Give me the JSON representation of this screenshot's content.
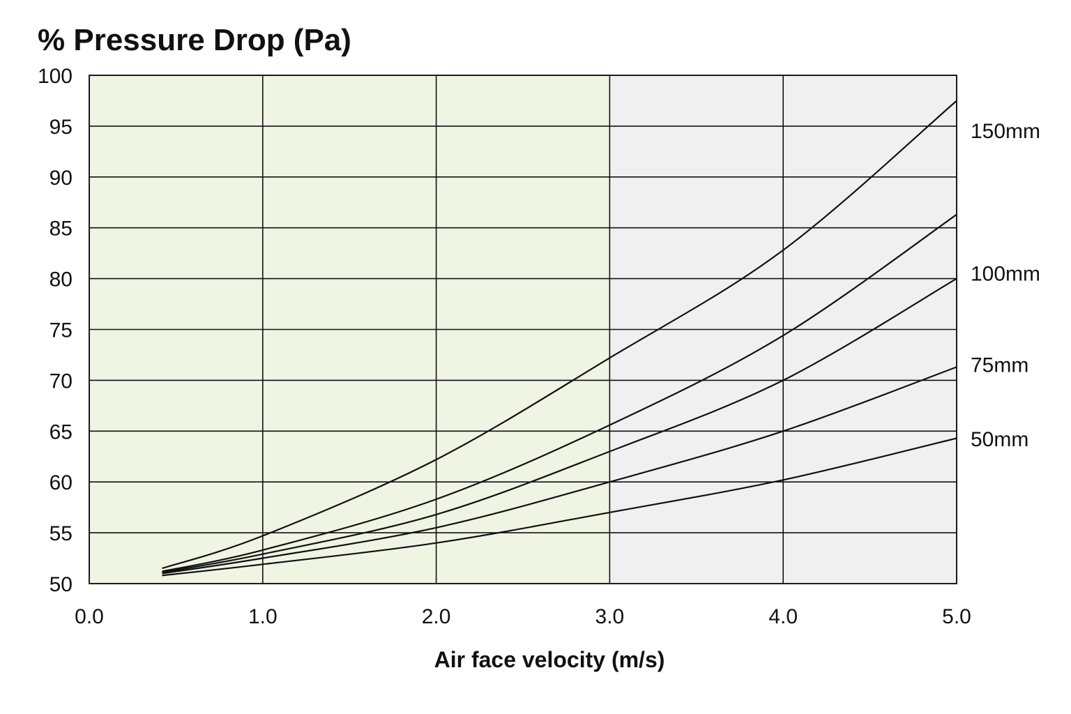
{
  "chart_data": {
    "type": "line",
    "title": "% Pressure Drop (Pa)",
    "xlabel": "Air face velocity (m/s)",
    "ylabel": "",
    "xlim": [
      0,
      5
    ],
    "ylim": [
      50,
      100
    ],
    "x_ticks": [
      "0.0",
      "1.0",
      "2.0",
      "3.0",
      "4.0",
      "5.0"
    ],
    "x_tick_values": [
      0,
      1,
      2,
      3,
      4,
      5
    ],
    "y_ticks": [
      "50",
      "55",
      "60",
      "65",
      "70",
      "75",
      "80",
      "85",
      "90",
      "95",
      "100"
    ],
    "y_tick_values": [
      50,
      55,
      60,
      65,
      70,
      75,
      80,
      85,
      90,
      95,
      100
    ],
    "grid": true,
    "shaded_regions": [
      {
        "x_range": [
          0,
          3
        ],
        "color": "#eff4e3"
      },
      {
        "x_range": [
          3,
          5
        ],
        "color": "#f0f0f0"
      }
    ],
    "series": [
      {
        "name": "150mm",
        "x": [
          0.42,
          1.0,
          2.0,
          3.0,
          4.0,
          5.0
        ],
        "y": [
          51.5,
          54.7,
          62.2,
          72.2,
          82.8,
          97.5
        ],
        "label_y": 94.5
      },
      {
        "name": "100mm",
        "x": [
          0.42,
          1.0,
          2.0,
          3.0,
          4.0,
          5.0
        ],
        "y": [
          51.2,
          53.3,
          58.3,
          65.6,
          74.4,
          86.3
        ],
        "label_y": 80.5
      },
      {
        "name": "",
        "x": [
          0.42,
          1.0,
          2.0,
          3.0,
          4.0,
          5.0
        ],
        "y": [
          51.1,
          52.9,
          56.8,
          63.0,
          70.0,
          80.0
        ]
      },
      {
        "name": "75mm",
        "x": [
          0.42,
          1.0,
          2.0,
          3.0,
          4.0,
          5.0
        ],
        "y": [
          51.0,
          52.5,
          55.5,
          60.0,
          65.0,
          71.3
        ],
        "label_y": 71.5
      },
      {
        "name": "50mm",
        "x": [
          0.42,
          1.0,
          2.0,
          3.0,
          4.0,
          5.0
        ],
        "y": [
          50.8,
          51.9,
          54.0,
          57.0,
          60.2,
          64.3
        ],
        "label_y": 64.2
      }
    ],
    "line_color": "#111111",
    "grid_color": "#111111"
  }
}
